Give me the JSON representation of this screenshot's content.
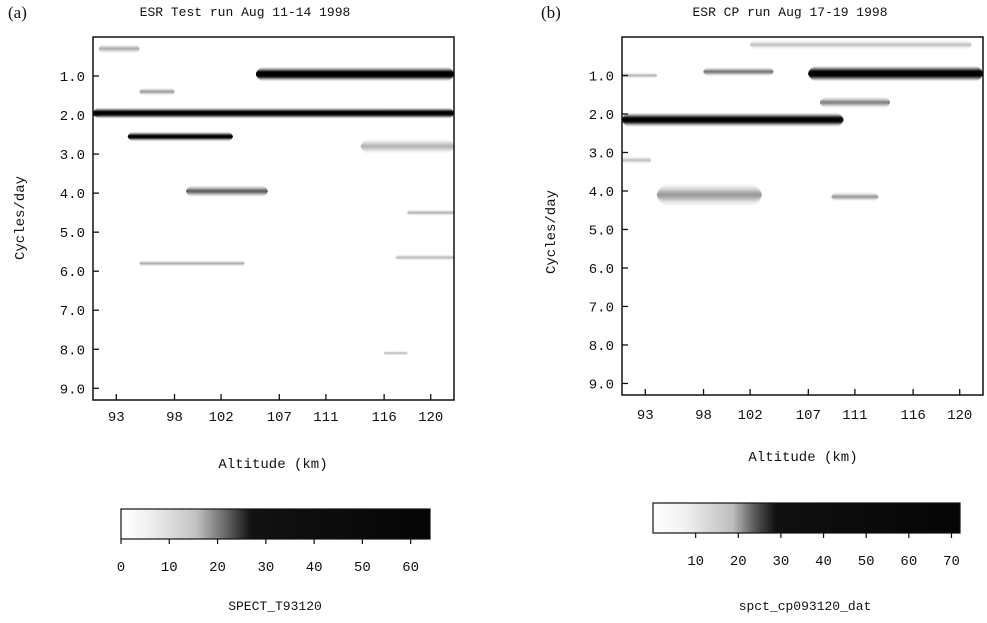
{
  "colors": {
    "ink": "#111111",
    "background": "#ffffff"
  },
  "chart_data": [
    {
      "type": "heatmap",
      "panel_label": "(a)",
      "title": "ESR Test run Aug 11-14 1998",
      "xlabel": "Altitude (km)",
      "ylabel": "Cycles/day",
      "xlim": [
        91,
        122
      ],
      "ylim": [
        0,
        9.3
      ],
      "y_inverted": true,
      "xticks": [
        93,
        98,
        102,
        107,
        111,
        116,
        120
      ],
      "yticks": [
        1.0,
        2.0,
        3.0,
        4.0,
        5.0,
        6.0,
        7.0,
        8.0,
        9.0
      ],
      "yticklabels": [
        "1.0",
        "2.0",
        "3.0",
        "4.0",
        "5.0",
        "6.0",
        "7.0",
        "8.0",
        "9.0"
      ],
      "colorbar": {
        "label": "SPECT_T93120",
        "ticks": [
          0,
          10,
          20,
          30,
          40,
          50,
          60
        ],
        "range": [
          0,
          64
        ]
      },
      "features": [
        {
          "alt_start": 105,
          "alt_end": 122,
          "freq_center": 0.95,
          "freq_halfwidth": 0.18,
          "peak": 62
        },
        {
          "alt_start": 91,
          "alt_end": 122,
          "freq_center": 1.95,
          "freq_halfwidth": 0.14,
          "peak": 58
        },
        {
          "alt_start": 94,
          "alt_end": 103,
          "freq_center": 2.55,
          "freq_halfwidth": 0.12,
          "peak": 50
        },
        {
          "alt_start": 91.5,
          "alt_end": 95,
          "freq_center": 0.3,
          "freq_halfwidth": 0.12,
          "peak": 10
        },
        {
          "alt_start": 95,
          "alt_end": 98,
          "freq_center": 1.4,
          "freq_halfwidth": 0.1,
          "peak": 12
        },
        {
          "alt_start": 99,
          "alt_end": 106,
          "freq_center": 3.95,
          "freq_halfwidth": 0.15,
          "peak": 22
        },
        {
          "alt_start": 95,
          "alt_end": 104,
          "freq_center": 5.8,
          "freq_halfwidth": 0.08,
          "peak": 10
        },
        {
          "alt_start": 114,
          "alt_end": 122,
          "freq_center": 2.8,
          "freq_halfwidth": 0.2,
          "peak": 9
        },
        {
          "alt_start": 118,
          "alt_end": 122,
          "freq_center": 4.5,
          "freq_halfwidth": 0.08,
          "peak": 9
        },
        {
          "alt_start": 117,
          "alt_end": 122,
          "freq_center": 5.65,
          "freq_halfwidth": 0.08,
          "peak": 8
        },
        {
          "alt_start": 116,
          "alt_end": 118,
          "freq_center": 8.1,
          "freq_halfwidth": 0.06,
          "peak": 8
        }
      ]
    },
    {
      "type": "heatmap",
      "panel_label": "(b)",
      "title": "ESR CP run Aug 17-19 1998",
      "xlabel": "Altitude (km)",
      "ylabel": "Cycles/day",
      "xlim": [
        91,
        122
      ],
      "ylim": [
        0,
        9.3
      ],
      "y_inverted": true,
      "xticks": [
        93,
        98,
        102,
        107,
        111,
        116,
        120
      ],
      "yticks": [
        1.0,
        2.0,
        3.0,
        4.0,
        5.0,
        6.0,
        7.0,
        8.0,
        9.0
      ],
      "yticklabels": [
        "1.0",
        "2.0",
        "3.0",
        "4.0",
        "5.0",
        "6.0",
        "7.0",
        "8.0",
        "9.0"
      ],
      "colorbar": {
        "label": "spct_cp093120_dat",
        "ticks": [
          10,
          20,
          30,
          40,
          50,
          60,
          70
        ],
        "range": [
          0,
          72
        ]
      },
      "features": [
        {
          "alt_start": 107,
          "alt_end": 122,
          "freq_center": 0.95,
          "freq_halfwidth": 0.2,
          "peak": 68
        },
        {
          "alt_start": 91,
          "alt_end": 110,
          "freq_center": 2.15,
          "freq_halfwidth": 0.18,
          "peak": 62
        },
        {
          "alt_start": 98,
          "alt_end": 104,
          "freq_center": 0.9,
          "freq_halfwidth": 0.12,
          "peak": 20
        },
        {
          "alt_start": 91,
          "alt_end": 94,
          "freq_center": 1.0,
          "freq_halfwidth": 0.08,
          "peak": 10
        },
        {
          "alt_start": 102,
          "alt_end": 121,
          "freq_center": 0.2,
          "freq_halfwidth": 0.12,
          "peak": 8
        },
        {
          "alt_start": 108,
          "alt_end": 114,
          "freq_center": 1.7,
          "freq_halfwidth": 0.15,
          "peak": 18
        },
        {
          "alt_start": 94,
          "alt_end": 103,
          "freq_center": 4.1,
          "freq_halfwidth": 0.3,
          "peak": 14
        },
        {
          "alt_start": 109,
          "alt_end": 113,
          "freq_center": 4.15,
          "freq_halfwidth": 0.12,
          "peak": 14
        },
        {
          "alt_start": 91,
          "alt_end": 93.5,
          "freq_center": 3.2,
          "freq_halfwidth": 0.1,
          "peak": 8
        }
      ]
    }
  ]
}
